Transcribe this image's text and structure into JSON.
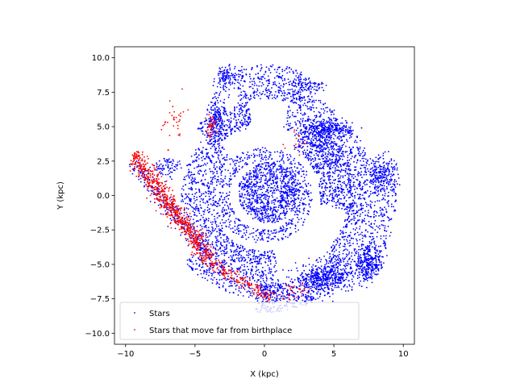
{
  "chart_data": {
    "type": "scatter",
    "title": "",
    "xlabel": "X (kpc)",
    "ylabel": "Y (kpc)",
    "xlim": [
      -10.8,
      10.8
    ],
    "ylim": [
      -10.8,
      10.8
    ],
    "xticks": [
      -10,
      -5,
      0,
      5,
      10
    ],
    "yticks": [
      -10.0,
      -7.5,
      -5.0,
      -2.5,
      0.0,
      2.5,
      5.0,
      7.5,
      10.0
    ],
    "xtick_labels": [
      "−10",
      "−5",
      "0",
      "5",
      "10"
    ],
    "ytick_labels": [
      "−10.0",
      "−7.5",
      "−5.0",
      "−2.5",
      "0.0",
      "2.5",
      "5.0",
      "7.5",
      "10.0"
    ],
    "grid": false,
    "legend": "lower-left",
    "series": [
      {
        "name": "Stars",
        "color": "#0000ff",
        "marker": "dot",
        "regions": [
          {
            "kind": "disk",
            "cx": 0.3,
            "cy": 0.2,
            "r": 2.2,
            "count": 900
          },
          {
            "kind": "arc",
            "cx": 0,
            "cy": 0,
            "r0": 2.5,
            "r1": 3.5,
            "a0": 0,
            "a1": 360,
            "count": 500
          },
          {
            "kind": "arc",
            "cx": 0,
            "cy": 0,
            "r0": 4.0,
            "r1": 6.5,
            "a0": -10,
            "a1": 60,
            "count": 600
          },
          {
            "kind": "arc",
            "cx": 0,
            "cy": 0,
            "r0": 6.0,
            "r1": 9.5,
            "a0": -50,
            "a1": 20,
            "count": 700
          },
          {
            "kind": "arc",
            "cx": 0,
            "cy": 0,
            "r0": 5.0,
            "r1": 8.0,
            "a0": 20,
            "a1": 75,
            "count": 500
          },
          {
            "kind": "arc",
            "cx": 0,
            "cy": 0,
            "r0": 7.0,
            "r1": 9.5,
            "a0": 70,
            "a1": 105,
            "count": 300
          },
          {
            "kind": "arc",
            "cx": 0,
            "cy": 0,
            "r0": 5.0,
            "r1": 7.0,
            "a0": 100,
            "a1": 135,
            "count": 300
          },
          {
            "kind": "arc",
            "cx": 0,
            "cy": 0,
            "r0": 3.5,
            "r1": 6.0,
            "a0": 130,
            "a1": 220,
            "count": 500
          },
          {
            "kind": "arc",
            "cx": 0,
            "cy": 0,
            "r0": 4.0,
            "r1": 7.5,
            "a0": 220,
            "a1": 280,
            "count": 650
          },
          {
            "kind": "arc",
            "cx": 0,
            "cy": 0,
            "r0": 6.5,
            "r1": 8.5,
            "a0": 265,
            "a1": 320,
            "count": 500
          },
          {
            "kind": "blob",
            "cx": 7.5,
            "cy": -5.0,
            "sx": 1.0,
            "sy": 1.0,
            "count": 300
          },
          {
            "kind": "blob",
            "cx": 4.0,
            "cy": -6.0,
            "sx": 1.5,
            "sy": 0.8,
            "count": 300
          },
          {
            "kind": "blob",
            "cx": 8.5,
            "cy": 1.5,
            "sx": 1.0,
            "sy": 1.0,
            "count": 200
          },
          {
            "kind": "blob",
            "cx": 4.8,
            "cy": 4.8,
            "sx": 1.2,
            "sy": 0.5,
            "count": 200
          },
          {
            "kind": "blob",
            "cx": -3.5,
            "cy": 5.5,
            "sx": 0.5,
            "sy": 1.5,
            "count": 150
          },
          {
            "kind": "blob",
            "cx": -2.8,
            "cy": 8.5,
            "sx": 0.6,
            "sy": 0.8,
            "count": 120
          },
          {
            "kind": "blob",
            "cx": 3.0,
            "cy": 8.0,
            "sx": 1.2,
            "sy": 0.5,
            "count": 100
          },
          {
            "kind": "blob",
            "cx": -7.0,
            "cy": 2.0,
            "sx": 1.0,
            "sy": 0.6,
            "count": 80
          },
          {
            "kind": "line",
            "x0": -9.5,
            "y0": 2.5,
            "x1": -4.0,
            "y1": -4.5,
            "w": 0.5,
            "count": 250
          }
        ]
      },
      {
        "name": "Stars that move far from birthplace",
        "color": "#ff0000",
        "marker": "dot",
        "regions": [
          {
            "kind": "line",
            "x0": -9.5,
            "y0": 3.0,
            "x1": -4.0,
            "y1": -4.5,
            "w": 0.55,
            "count": 700
          },
          {
            "kind": "line",
            "x0": -4.5,
            "y0": -4.5,
            "x1": 0.5,
            "y1": -7.5,
            "w": 0.5,
            "count": 180
          },
          {
            "kind": "blob",
            "cx": -3.8,
            "cy": 5.0,
            "sx": 0.4,
            "sy": 0.8,
            "count": 40
          },
          {
            "kind": "blob",
            "cx": -6.5,
            "cy": 5.5,
            "sx": 0.8,
            "sy": 1.5,
            "count": 35
          },
          {
            "kind": "blob",
            "cx": 2.5,
            "cy": 4.0,
            "sx": 1.0,
            "sy": 1.0,
            "count": 15
          },
          {
            "kind": "blob",
            "cx": 2.0,
            "cy": -7.0,
            "sx": 1.0,
            "sy": 0.4,
            "count": 30
          }
        ]
      }
    ]
  }
}
